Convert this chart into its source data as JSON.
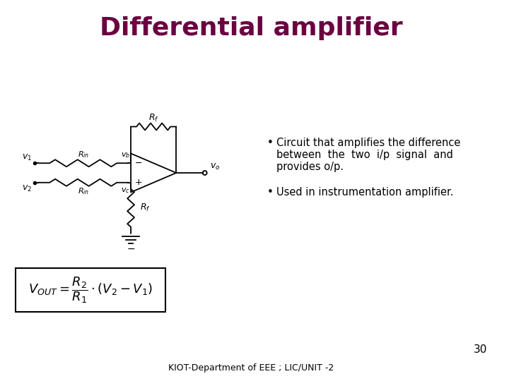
{
  "title": "Differential amplifier",
  "title_color": "#6B0040",
  "title_fontsize": 26,
  "title_fontweight": "bold",
  "bullet1_line1": "Circuit that amplifies the difference",
  "bullet1_line2": "between  the  two  i/p  signal  and",
  "bullet1_line3": "provides o/p.",
  "bullet2": "Used in instrumentation amplifier.",
  "footer": "KIOT-Department of EEE ; LIC/UNIT -2",
  "page_number": "30",
  "bg_color": "#ffffff",
  "text_color": "#000000",
  "circuit_color": "#000000",
  "formula_box_color": "#000000"
}
